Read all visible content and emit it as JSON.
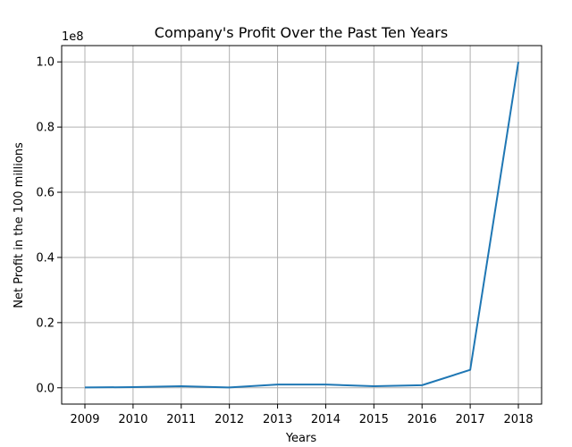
{
  "chart_data": {
    "type": "line",
    "title": "Company's Profit Over the Past Ten Years",
    "xlabel": "Years",
    "ylabel": "Net Profit in the 100 millions",
    "y_scale_label": "1e8",
    "x": [
      "2009",
      "2010",
      "2011",
      "2012",
      "2013",
      "2014",
      "2015",
      "2016",
      "2017",
      "2018"
    ],
    "series": [
      {
        "values": [
          100000,
          200000,
          500000,
          100000,
          1000000,
          1000000,
          500000,
          800000,
          5500000,
          100000000
        ]
      }
    ],
    "y_ticks": [
      0,
      20000000,
      40000000,
      60000000,
      80000000,
      100000000
    ],
    "y_tick_labels": [
      "0.0",
      "0.2",
      "0.4",
      "0.6",
      "0.8",
      "1.0"
    ],
    "ylim": [
      -5000000,
      105000000
    ],
    "grid": true,
    "line_color": "#1f77b4"
  }
}
